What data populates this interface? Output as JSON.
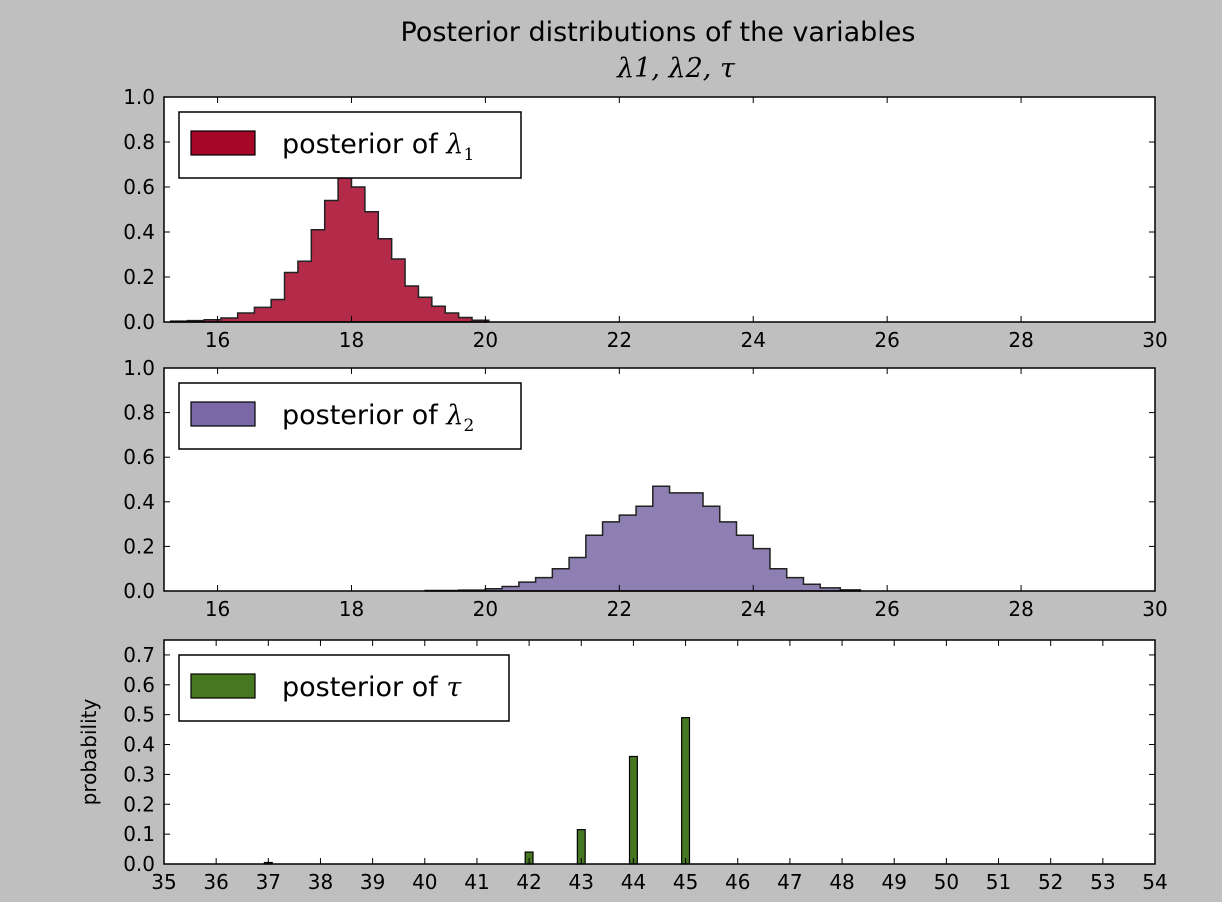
{
  "figure": {
    "title": "Posterior distributions of the variables",
    "subtitle": "λ1,  λ2,  τ"
  },
  "chart_data": [
    {
      "type": "bar",
      "histtype": "stepfilled",
      "legend": "posterior of λ1",
      "legend_position": "top-left",
      "color": "#A60628",
      "xlim": [
        15.2,
        30
      ],
      "ylim": [
        0,
        1.0
      ],
      "xticks": [
        16,
        18,
        20,
        22,
        24,
        26,
        28,
        30
      ],
      "yticks": [
        "0.0",
        "0.2",
        "0.4",
        "0.6",
        "0.8",
        "1.0"
      ],
      "ylabel": "",
      "bin_edges": [
        15.3,
        15.55,
        15.8,
        16.05,
        16.3,
        16.55,
        16.8,
        17.0,
        17.2,
        17.4,
        17.6,
        17.8,
        18.0,
        18.2,
        18.4,
        18.6,
        18.8,
        19.0,
        19.2,
        19.4,
        19.6,
        19.8,
        20.05
      ],
      "values": [
        0.004,
        0.006,
        0.01,
        0.018,
        0.04,
        0.065,
        0.1,
        0.22,
        0.27,
        0.41,
        0.54,
        0.64,
        0.6,
        0.49,
        0.37,
        0.28,
        0.16,
        0.11,
        0.07,
        0.04,
        0.02,
        0.008
      ]
    },
    {
      "type": "bar",
      "histtype": "stepfilled",
      "legend": "posterior of λ2",
      "legend_position": "top-left",
      "color": "#7A68A6",
      "xlim": [
        15.2,
        30
      ],
      "ylim": [
        0,
        1.0
      ],
      "xticks": [
        16,
        18,
        20,
        22,
        24,
        26,
        28,
        30
      ],
      "yticks": [
        "0.0",
        "0.2",
        "0.4",
        "0.6",
        "0.8",
        "1.0"
      ],
      "ylabel": "",
      "bin_edges": [
        19.1,
        19.6,
        20.0,
        20.25,
        20.5,
        20.75,
        21.0,
        21.25,
        21.5,
        21.75,
        22.0,
        22.25,
        22.5,
        22.75,
        23.0,
        23.25,
        23.5,
        23.75,
        24.0,
        24.25,
        24.5,
        24.75,
        25.0,
        25.3,
        25.6
      ],
      "values": [
        0.002,
        0.004,
        0.01,
        0.02,
        0.04,
        0.06,
        0.1,
        0.15,
        0.25,
        0.31,
        0.34,
        0.38,
        0.47,
        0.44,
        0.44,
        0.38,
        0.31,
        0.25,
        0.19,
        0.1,
        0.06,
        0.03,
        0.014,
        0.005
      ]
    },
    {
      "type": "bar",
      "legend": "posterior of τ",
      "legend_position": "top-left",
      "color": "#467821",
      "xlim": [
        35,
        54
      ],
      "ylim": [
        0,
        0.75
      ],
      "xticks": [
        35,
        36,
        37,
        38,
        39,
        40,
        41,
        42,
        43,
        44,
        45,
        46,
        47,
        48,
        49,
        50,
        51,
        52,
        53,
        54
      ],
      "yticks": [
        "0.0",
        "0.1",
        "0.2",
        "0.3",
        "0.4",
        "0.5",
        "0.6",
        "0.7"
      ],
      "ylabel": "probability",
      "x": [
        37,
        42,
        43,
        44,
        45
      ],
      "values": [
        0.005,
        0.04,
        0.115,
        0.36,
        0.49
      ]
    }
  ]
}
